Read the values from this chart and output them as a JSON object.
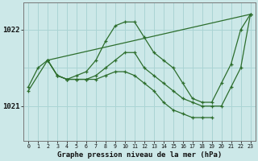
{
  "title": "Graphe pression niveau de la mer (hPa)",
  "bg_color": "#cce8e8",
  "grid_color": "#aad4d4",
  "line_color": "#2d6e2d",
  "xlim": [
    -0.5,
    23.5
  ],
  "ylim": [
    1020.55,
    1022.35
  ],
  "yticks": [
    1021,
    1022
  ],
  "xticks": [
    0,
    1,
    2,
    3,
    4,
    5,
    6,
    7,
    8,
    9,
    10,
    11,
    12,
    13,
    14,
    15,
    16,
    17,
    18,
    19,
    20,
    21,
    22,
    23
  ],
  "series": [
    {
      "x": [
        0,
        1,
        2,
        3,
        4,
        5,
        6,
        7,
        8,
        9,
        10,
        11,
        12,
        13,
        14,
        15,
        16,
        17,
        18,
        19,
        20,
        21,
        22,
        23
      ],
      "y": [
        1021.25,
        1021.5,
        1021.6,
        1021.4,
        1021.35,
        1021.4,
        1021.45,
        1021.6,
        1021.85,
        1022.05,
        1022.1,
        1022.1,
        1021.9,
        1021.7,
        1021.6,
        1021.5,
        1021.3,
        1021.1,
        1021.05,
        1021.05,
        1021.3,
        1021.55,
        1022.0,
        1022.2
      ]
    },
    {
      "x": [
        0,
        2,
        3,
        4,
        5,
        6,
        7,
        8,
        9,
        10,
        11,
        12,
        13,
        14,
        15,
        16,
        17,
        18,
        19,
        20,
        21,
        22,
        23
      ],
      "y": [
        1021.2,
        1021.6,
        1021.4,
        1021.35,
        1021.35,
        1021.35,
        1021.4,
        1021.5,
        1021.6,
        1021.7,
        1021.7,
        1021.5,
        1021.4,
        1021.3,
        1021.2,
        1021.1,
        1021.05,
        1021.0,
        1021.0,
        1021.0,
        1021.25,
        1021.5,
        1022.2
      ]
    },
    {
      "x": [
        2,
        23
      ],
      "y": [
        1021.6,
        1022.2
      ]
    },
    {
      "x": [
        2,
        3,
        4,
        5,
        6,
        7,
        8,
        9,
        10,
        11,
        12,
        13,
        14,
        15,
        16,
        17,
        18,
        19
      ],
      "y": [
        1021.6,
        1021.4,
        1021.35,
        1021.35,
        1021.35,
        1021.35,
        1021.4,
        1021.45,
        1021.45,
        1021.4,
        1021.3,
        1021.2,
        1021.05,
        1020.95,
        1020.9,
        1020.85,
        1020.85,
        1020.85
      ]
    }
  ]
}
